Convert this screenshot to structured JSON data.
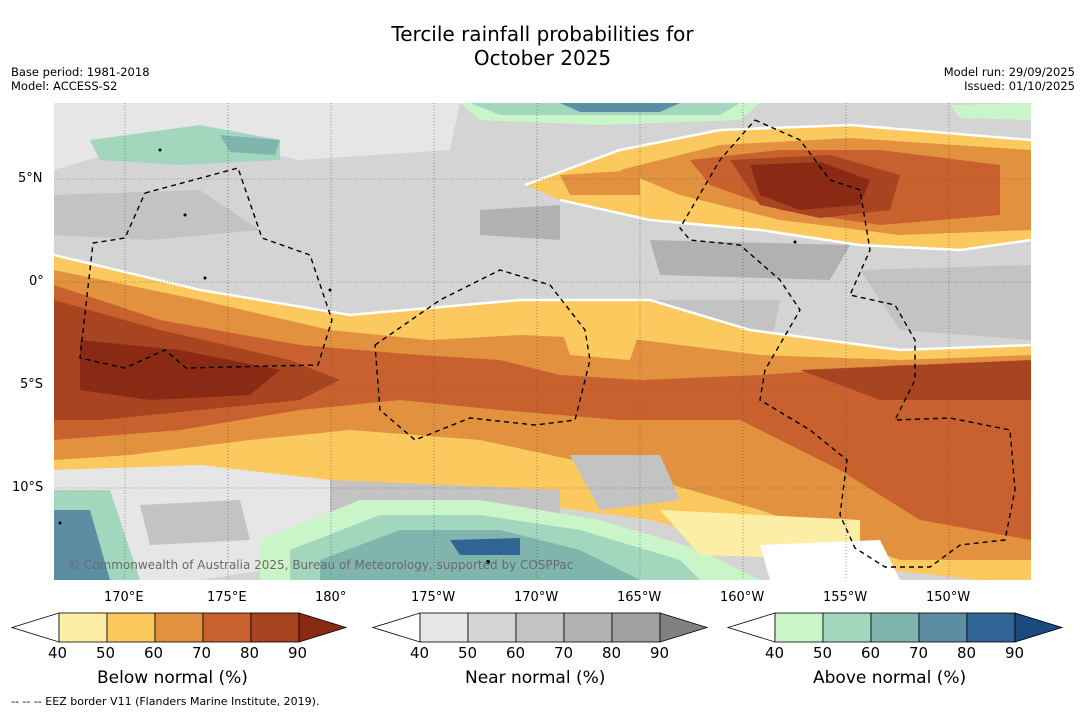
{
  "title_line1": "Tercile rainfall probabilities for",
  "title_line2": "October 2025",
  "base_period": "Base period: 1981-2018",
  "model": "Model: ACCESS-S2",
  "model_run": "Model run: 29/09/2025",
  "issued": "Issued: 01/10/2025",
  "copyright": "© Commonwealth of Australia 2025, Bureau of Meteorology, supported by COSPPac",
  "footer": "--  --  -- EEZ border V11 (Flanders Marine Institute, 2019).",
  "lat_labels": [
    "5°N",
    "0°",
    "5°S",
    "10°S"
  ],
  "lon_labels": [
    "170°E",
    "175°E",
    "180°",
    "175°W",
    "170°W",
    "165°W",
    "160°W",
    "155°W",
    "150°W"
  ],
  "colorbars": [
    {
      "label": "Below normal (%)",
      "ticks": [
        "40",
        "50",
        "60",
        "70",
        "80",
        "90"
      ],
      "colors": [
        "#ffffff",
        "#fdeea6",
        "#fcc95f",
        "#e2913f",
        "#c8612e",
        "#a84420",
        "#8a2a15"
      ]
    },
    {
      "label": "Near normal (%)",
      "ticks": [
        "40",
        "50",
        "60",
        "70",
        "80",
        "90"
      ],
      "colors": [
        "#ffffff",
        "#e6e6e6",
        "#d4d4d4",
        "#c3c3c3",
        "#b1b1b1",
        "#a0a0a0",
        "#808080"
      ]
    },
    {
      "label": "Above normal (%)",
      "ticks": [
        "40",
        "50",
        "60",
        "70",
        "80",
        "90"
      ],
      "colors": [
        "#ffffff",
        "#c9f5c9",
        "#a2d7bd",
        "#80b5ae",
        "#5b8ea2",
        "#2f6494",
        "#1a4a80"
      ]
    }
  ]
}
